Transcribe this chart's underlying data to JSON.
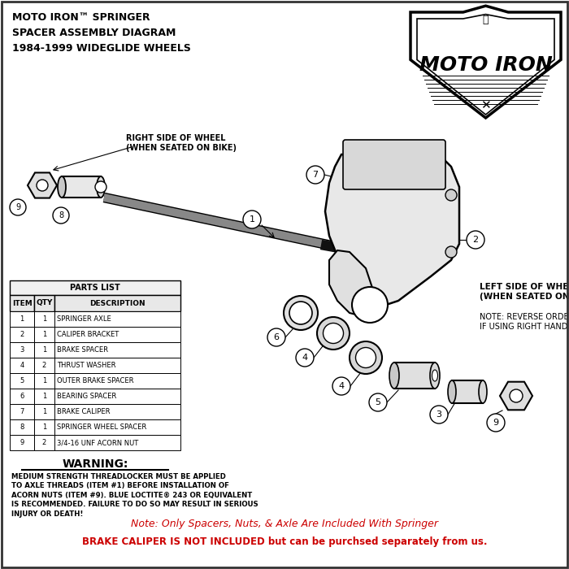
{
  "title_text": "MOTO IRON™ SPRINGER\nSPACER ASSEMBLY DIAGRAM\n1984-1999 WIDEGLIDE WHEELS",
  "brand_name": "MOTO IRON",
  "parts_list_header": "PARTS LIST",
  "table_headers": [
    "ITEM",
    "QTY",
    "DESCRIPTION"
  ],
  "table_rows": [
    [
      "1",
      "1",
      "SPRINGER AXLE"
    ],
    [
      "2",
      "1",
      "CALIPER BRACKET"
    ],
    [
      "3",
      "1",
      "BRAKE SPACER"
    ],
    [
      "4",
      "2",
      "THRUST WASHER"
    ],
    [
      "5",
      "1",
      "OUTER BRAKE SPACER"
    ],
    [
      "6",
      "1",
      "BEARING SPACER"
    ],
    [
      "7",
      "1",
      "BRAKE CALIPER"
    ],
    [
      "8",
      "1",
      "SPRINGER WHEEL SPACER"
    ],
    [
      "9",
      "2",
      "3/4-16 UNF ACORN NUT"
    ]
  ],
  "warning_title": "WARNING:",
  "warning_body": "MEDIUM STRENGTH THREADLOCKER MUST BE APPLIED\nTO AXLE THREADS (ITEM #1) BEFORE INSTALLATION OF\nACORN NUTS (ITEM #9). BLUE LOCTITE® 243 OR EQUIVALENT\nIS RECOMMENDED. FAILURE TO DO SO MAY RESULT IN SERIOUS\nINJURY OR DEATH!",
  "note_line1": "Note: Only Spacers, Nuts, & Axle Are Included With Springer",
  "note_line2": "BRAKE CALIPER IS NOT INCLUDED but can be purchsed separately from us.",
  "right_side_label": "RIGHT SIDE OF WHEEL\n(WHEN SEATED ON BIKE)",
  "left_side_label": "LEFT SIDE OF WHEEL\n(WHEN SEATED ON BIKE)",
  "note_caliper": "NOTE: REVERSE ORDER OF ASSEMBLY\nIF USING RIGHT HAND CALIPER",
  "bg_color": "#ffffff",
  "text_color": "#000000",
  "red_color": "#cc0000",
  "border_color": "#555555",
  "fig_width": 7.0,
  "fig_height": 7.0,
  "dpi": 100
}
